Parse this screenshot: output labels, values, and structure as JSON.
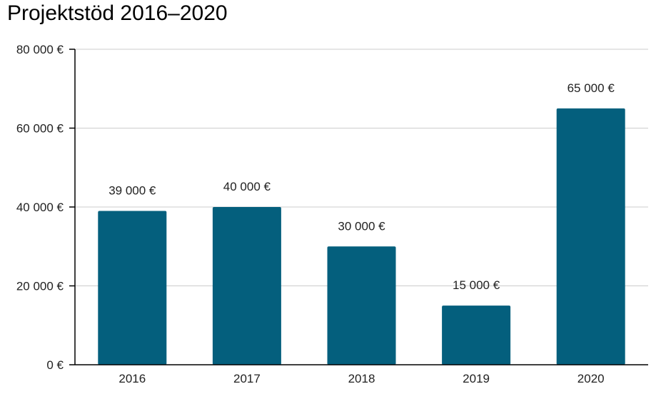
{
  "chart_data": {
    "type": "bar",
    "title": "Projektstöd 2016–2020",
    "categories": [
      "2016",
      "2017",
      "2018",
      "2019",
      "2020"
    ],
    "values": [
      39000,
      40000,
      30000,
      15000,
      65000
    ],
    "data_labels": [
      "39 000 €",
      "40 000 €",
      "30 000 €",
      "15 000 €",
      "65 000 €"
    ],
    "ylim": [
      0,
      80000
    ],
    "yticks": [
      0,
      20000,
      40000,
      60000,
      80000
    ],
    "ytick_labels": [
      "0 €",
      "20 000 €",
      "40 000 €",
      "60 000 €",
      "80 000 €"
    ],
    "grid": true,
    "bar_color": "#045f7d",
    "grid_color": "#cccccc",
    "axis_color": "#000000"
  }
}
